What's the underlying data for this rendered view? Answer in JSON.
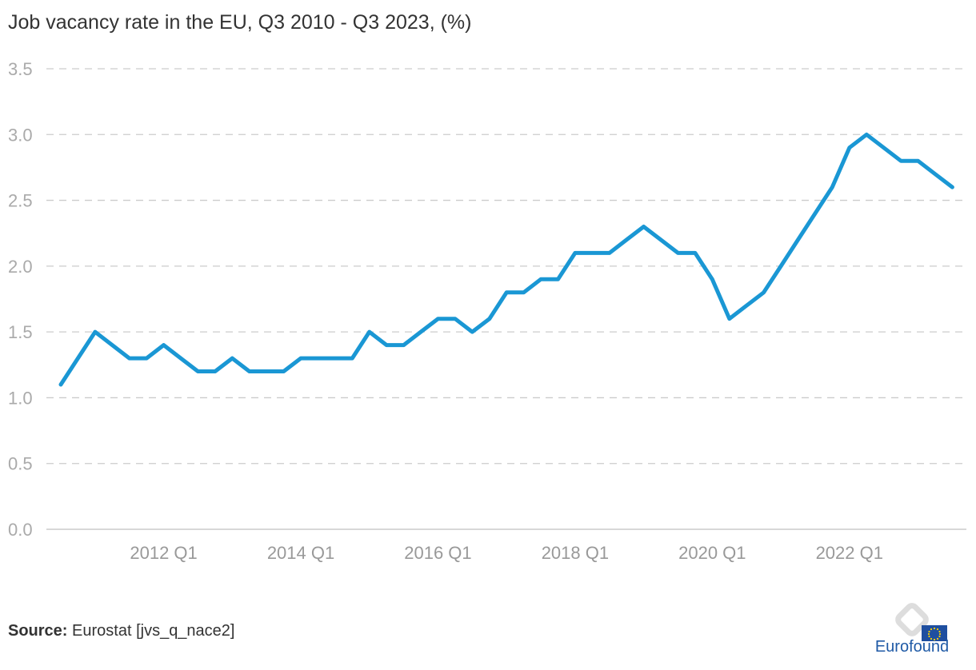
{
  "chart_data": {
    "type": "line",
    "title": "Job vacancy rate in the EU, Q3 2010 - Q3 2023, (%)",
    "xlabel": "",
    "ylabel": "",
    "ylim": [
      0,
      3.5
    ],
    "yticks": [
      0,
      0.5,
      1,
      1.5,
      2,
      2.5,
      3,
      3.5
    ],
    "ytick_labels": [
      "0.0",
      "0.5",
      "1.0",
      "1.5",
      "2.0",
      "2.5",
      "3.0",
      "3.5"
    ],
    "grid": true,
    "x": [
      "2010 Q3",
      "2010 Q4",
      "2011 Q1",
      "2011 Q2",
      "2011 Q3",
      "2011 Q4",
      "2012 Q1",
      "2012 Q2",
      "2012 Q3",
      "2012 Q4",
      "2013 Q1",
      "2013 Q2",
      "2013 Q3",
      "2013 Q4",
      "2014 Q1",
      "2014 Q2",
      "2014 Q3",
      "2014 Q4",
      "2015 Q1",
      "2015 Q2",
      "2015 Q3",
      "2015 Q4",
      "2016 Q1",
      "2016 Q2",
      "2016 Q3",
      "2016 Q4",
      "2017 Q1",
      "2017 Q2",
      "2017 Q3",
      "2017 Q4",
      "2018 Q1",
      "2018 Q2",
      "2018 Q3",
      "2018 Q4",
      "2019 Q1",
      "2019 Q2",
      "2019 Q3",
      "2019 Q4",
      "2020 Q1",
      "2020 Q2",
      "2020 Q3",
      "2020 Q4",
      "2021 Q1",
      "2021 Q2",
      "2021 Q3",
      "2021 Q4",
      "2022 Q1",
      "2022 Q2",
      "2022 Q3",
      "2022 Q4",
      "2023 Q1",
      "2023 Q2",
      "2023 Q3"
    ],
    "xtick_labels": [
      "2012 Q1",
      "2014 Q1",
      "2016 Q1",
      "2018 Q1",
      "2020 Q1",
      "2022 Q1"
    ],
    "series": [
      {
        "name": "",
        "color": "#1a97d4",
        "values": [
          1.1,
          1.3,
          1.5,
          1.4,
          1.3,
          1.3,
          1.4,
          1.3,
          1.2,
          1.2,
          1.3,
          1.2,
          1.2,
          1.2,
          1.3,
          1.3,
          1.3,
          1.3,
          1.5,
          1.4,
          1.4,
          1.5,
          1.6,
          1.6,
          1.5,
          1.6,
          1.8,
          1.8,
          1.9,
          1.9,
          2.1,
          2.1,
          2.1,
          2.2,
          2.3,
          2.2,
          2.1,
          2.1,
          1.9,
          1.6,
          1.7,
          1.8,
          2.0,
          2.2,
          2.4,
          2.6,
          2.9,
          3.0,
          2.9,
          2.8,
          2.8,
          2.7,
          2.6
        ]
      }
    ]
  },
  "source": {
    "label": "Source:",
    "text": " Eurostat [jvs_q_nace2]"
  },
  "logo": {
    "text": "Eurofound"
  }
}
